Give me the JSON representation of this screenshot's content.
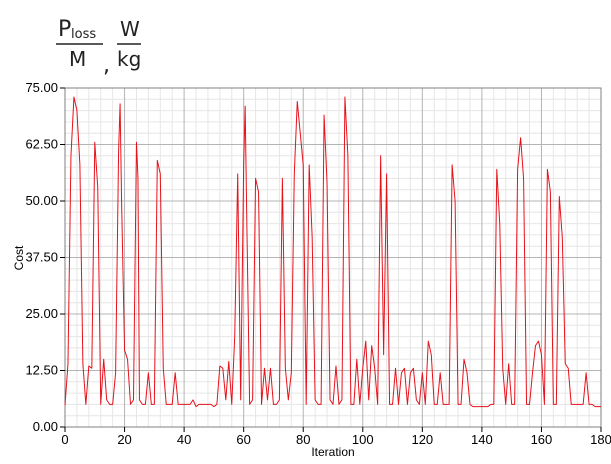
{
  "header": {
    "p_main": "P",
    "p_sub": "loss",
    "m_label": "M",
    "separator": ",",
    "w_label": "W",
    "kg_label": "kg"
  },
  "chart_data": {
    "type": "line",
    "xlabel": "Iteration",
    "ylabel": "Cost",
    "xlim": [
      0,
      180
    ],
    "ylim": [
      0,
      75
    ],
    "xticks": [
      "0",
      "20",
      "40",
      "60",
      "80",
      "100",
      "120",
      "140",
      "160",
      "180"
    ],
    "yticks": [
      "0.00",
      "12.50",
      "25.00",
      "37.50",
      "50.00",
      "62.50",
      "75.00"
    ],
    "grid": true,
    "line_color": "#e8111a",
    "series": [
      {
        "points": [
          [
            0,
            4.8
          ],
          [
            1,
            14
          ],
          [
            2,
            60
          ],
          [
            3,
            73
          ],
          [
            4,
            70
          ],
          [
            5,
            58
          ],
          [
            6,
            14
          ],
          [
            7,
            5
          ],
          [
            8,
            13.5
          ],
          [
            9,
            13
          ],
          [
            10,
            63
          ],
          [
            11,
            53
          ],
          [
            12,
            5
          ],
          [
            13,
            15
          ],
          [
            14,
            6
          ],
          [
            15,
            5
          ],
          [
            16,
            5
          ],
          [
            17,
            12
          ],
          [
            18,
            61
          ],
          [
            18.5,
            71.5
          ],
          [
            19,
            50
          ],
          [
            20,
            17
          ],
          [
            21,
            15
          ],
          [
            22,
            5
          ],
          [
            23,
            6
          ],
          [
            24,
            63
          ],
          [
            24.5,
            55
          ],
          [
            25,
            6
          ],
          [
            26,
            5
          ],
          [
            27,
            5
          ],
          [
            28,
            12
          ],
          [
            29,
            5
          ],
          [
            30,
            5
          ],
          [
            31,
            59
          ],
          [
            32,
            56
          ],
          [
            33,
            13
          ],
          [
            34,
            5
          ],
          [
            35,
            5
          ],
          [
            36,
            5
          ],
          [
            37,
            12
          ],
          [
            38,
            5
          ],
          [
            39,
            5
          ],
          [
            40,
            5
          ],
          [
            41,
            5
          ],
          [
            42,
            5
          ],
          [
            43,
            6
          ],
          [
            44,
            4.5
          ],
          [
            45,
            5
          ],
          [
            46,
            5
          ],
          [
            47,
            5
          ],
          [
            48,
            5
          ],
          [
            49,
            5
          ],
          [
            50,
            4.5
          ],
          [
            51,
            5
          ],
          [
            52,
            13.5
          ],
          [
            53,
            13
          ],
          [
            54,
            6
          ],
          [
            55,
            14.5
          ],
          [
            56,
            5
          ],
          [
            57,
            20
          ],
          [
            58,
            56
          ],
          [
            59,
            6
          ],
          [
            60,
            58
          ],
          [
            60.5,
            71
          ],
          [
            61,
            48
          ],
          [
            62,
            5
          ],
          [
            63,
            6
          ],
          [
            64,
            55
          ],
          [
            65,
            52
          ],
          [
            66,
            5
          ],
          [
            67,
            13
          ],
          [
            68,
            6
          ],
          [
            69,
            13
          ],
          [
            70,
            5
          ],
          [
            71,
            5
          ],
          [
            72,
            6
          ],
          [
            73,
            55
          ],
          [
            74,
            13
          ],
          [
            75,
            6
          ],
          [
            76,
            12
          ],
          [
            77,
            56
          ],
          [
            78,
            72
          ],
          [
            79,
            65
          ],
          [
            80,
            58
          ],
          [
            81,
            5
          ],
          [
            82,
            58
          ],
          [
            83,
            42
          ],
          [
            84,
            6
          ],
          [
            85,
            5
          ],
          [
            86,
            5
          ],
          [
            87,
            69
          ],
          [
            88,
            54
          ],
          [
            89,
            6
          ],
          [
            90,
            5
          ],
          [
            91,
            13.5
          ],
          [
            92,
            5
          ],
          [
            93,
            6
          ],
          [
            94,
            73
          ],
          [
            95,
            60
          ],
          [
            96,
            5
          ],
          [
            97,
            5
          ],
          [
            98,
            15
          ],
          [
            99,
            5
          ],
          [
            100,
            13
          ],
          [
            101,
            19
          ],
          [
            102,
            6
          ],
          [
            103,
            18
          ],
          [
            104,
            13
          ],
          [
            105,
            5
          ],
          [
            106,
            60
          ],
          [
            107,
            16
          ],
          [
            108,
            56
          ],
          [
            109,
            5
          ],
          [
            110,
            5
          ],
          [
            111,
            13
          ],
          [
            112,
            5
          ],
          [
            113,
            12
          ],
          [
            114,
            13
          ],
          [
            115,
            5
          ],
          [
            116,
            12
          ],
          [
            117,
            13
          ],
          [
            118,
            6
          ],
          [
            119,
            5
          ],
          [
            120,
            12
          ],
          [
            121,
            5
          ],
          [
            122,
            19
          ],
          [
            123,
            16
          ],
          [
            124,
            5
          ],
          [
            125,
            5
          ],
          [
            126,
            12
          ],
          [
            127,
            5
          ],
          [
            128,
            5
          ],
          [
            129,
            5
          ],
          [
            130,
            58
          ],
          [
            131,
            50
          ],
          [
            132,
            5
          ],
          [
            133,
            5
          ],
          [
            134,
            15
          ],
          [
            135,
            12
          ],
          [
            136,
            5
          ],
          [
            137,
            4.5
          ],
          [
            138,
            4.5
          ],
          [
            139,
            4.5
          ],
          [
            140,
            4.5
          ],
          [
            141,
            4.5
          ],
          [
            142,
            4.5
          ],
          [
            143,
            5
          ],
          [
            144,
            5
          ],
          [
            145,
            57
          ],
          [
            146,
            45
          ],
          [
            147,
            13
          ],
          [
            148,
            5
          ],
          [
            149,
            14
          ],
          [
            150,
            5
          ],
          [
            151,
            5
          ],
          [
            152,
            57
          ],
          [
            153,
            64
          ],
          [
            154,
            55
          ],
          [
            155,
            5
          ],
          [
            156,
            5
          ],
          [
            157,
            12
          ],
          [
            158,
            18
          ],
          [
            159,
            19
          ],
          [
            160,
            16
          ],
          [
            161,
            5
          ],
          [
            162,
            57
          ],
          [
            163,
            52
          ],
          [
            164,
            5
          ],
          [
            165,
            5
          ],
          [
            166,
            51
          ],
          [
            167,
            42
          ],
          [
            168,
            14
          ],
          [
            169,
            13
          ],
          [
            170,
            5
          ],
          [
            171,
            5
          ],
          [
            172,
            5
          ],
          [
            173,
            5
          ],
          [
            174,
            5
          ],
          [
            175,
            12
          ],
          [
            176,
            5
          ],
          [
            177,
            5
          ],
          [
            178,
            4.5
          ],
          [
            180,
            4.5
          ]
        ]
      }
    ]
  }
}
